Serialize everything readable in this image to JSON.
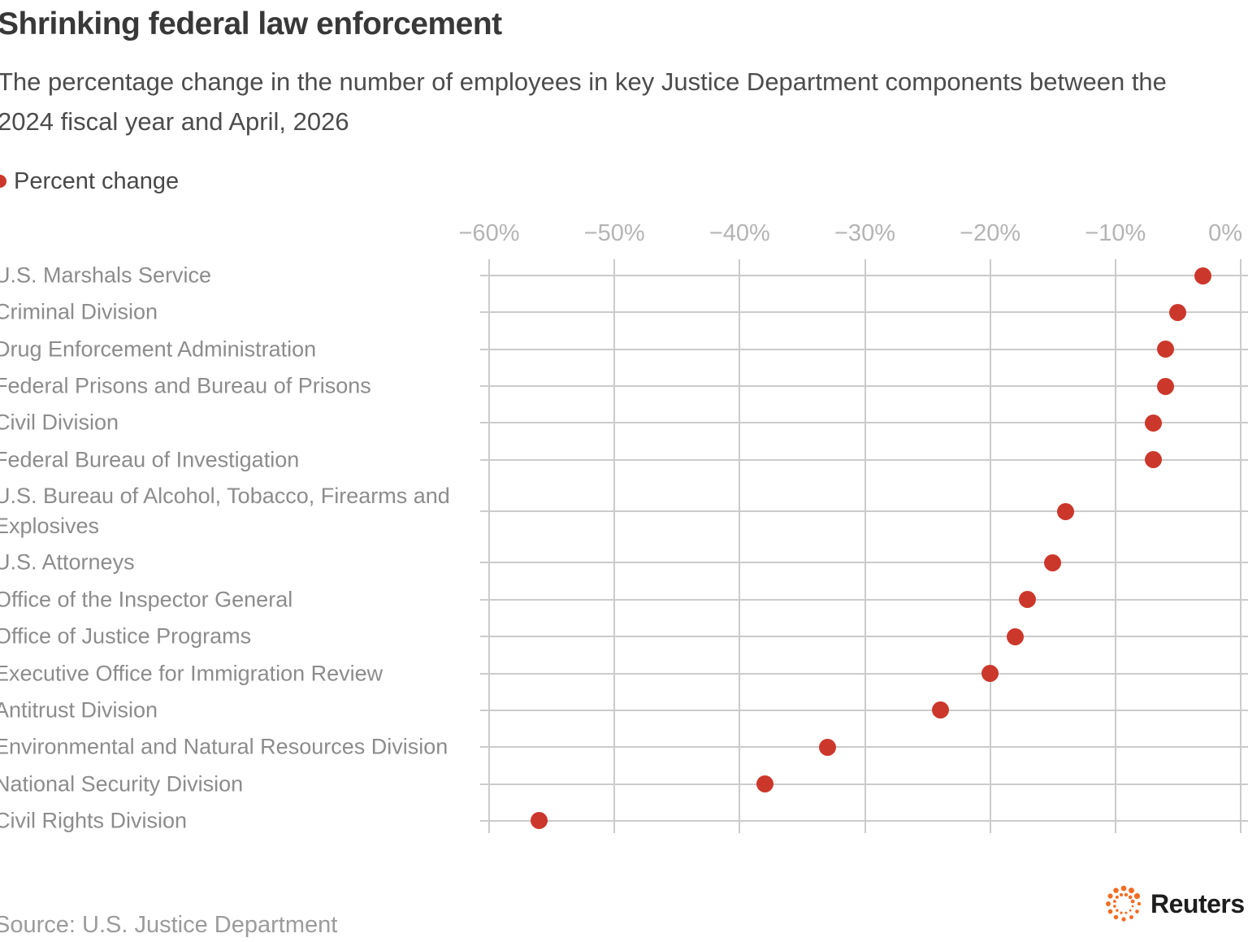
{
  "header": {
    "title": "Shrinking federal law enforcement",
    "subtitle": "The percentage change in the number of employees in key Justice Department components between the 2024 fiscal year and April, 2026"
  },
  "legend": {
    "label": "Percent change",
    "marker_color": "#cc372c"
  },
  "chart_data": {
    "type": "scatter",
    "subtype": "horizontal-dot-plot",
    "series_name": "Percent change",
    "categories": [
      "U.S. Marshals Service",
      "Criminal Division",
      "Drug Enforcement Administration",
      "Federal Prisons and Bureau of Prisons",
      "Civil Division",
      "Federal Bureau of Investigation",
      "U.S. Bureau of Alcohol, Tobacco, Firearms and\nExplosives",
      "U.S. Attorneys",
      "Office of the Inspector General",
      "Office of Justice Programs",
      "Executive Office for Immigration Review",
      "Antitrust Division",
      "Environmental and Natural Resources Division",
      "National Security Division",
      "Civil Rights Division"
    ],
    "values": [
      -3,
      -5,
      -6,
      -6,
      -7,
      -7,
      -14,
      -15,
      -17,
      -18,
      -20,
      -24,
      -33,
      -38,
      -56
    ],
    "unit": "%",
    "x_ticks": [
      "−60%",
      "−50%",
      "−40%",
      "−30%",
      "−20%",
      "−10%",
      "0%"
    ],
    "x_tick_values": [
      -60,
      -50,
      -40,
      -30,
      -20,
      -10,
      0
    ],
    "xlim": [
      -60,
      0
    ],
    "grid": true,
    "dot_color": "#cc372c",
    "gridline_color": "#cbcbcb",
    "legend_position": "top-left"
  },
  "footer": {
    "source": "Source: U.S. Justice Department",
    "brand": "Reuters"
  }
}
